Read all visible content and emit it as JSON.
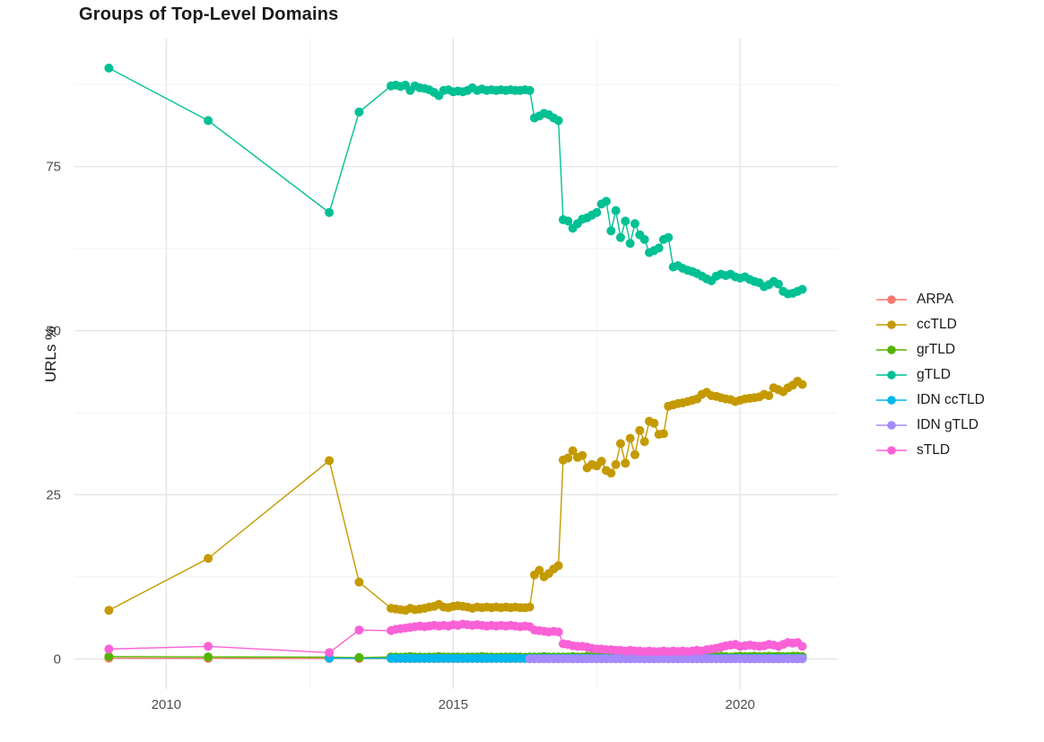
{
  "chart_data": {
    "type": "line",
    "title": "Groups of Top-Level Domains",
    "xlabel": "",
    "ylabel": "URLs %",
    "legend_position": "right",
    "grid": true,
    "background": "#ffffff",
    "grid_major_color": "#e4e4e4",
    "grid_minor_color": "#efefef",
    "tick_label_color": "#4d4d4d",
    "xlim": [
      2008.4,
      2021.7
    ],
    "ylim": [
      -4.6,
      94.5
    ],
    "x_ticks": {
      "major": [
        {
          "v": 2010,
          "label": "2010"
        },
        {
          "v": 2015,
          "label": "2015"
        },
        {
          "v": 2020,
          "label": "2020"
        }
      ],
      "minor": [
        2012.5,
        2017.5
      ]
    },
    "y_ticks": {
      "major": [
        {
          "v": 0,
          "label": "0"
        },
        {
          "v": 25,
          "label": "25"
        },
        {
          "v": 50,
          "label": "50"
        },
        {
          "v": 75,
          "label": "75"
        }
      ],
      "minor": [
        12.5,
        37.5,
        62.5,
        87.5
      ]
    },
    "series": [
      {
        "name": "ARPA",
        "color": "#F8766D",
        "sparse": [
          [
            2009.0,
            0.1
          ],
          [
            2010.73,
            0.07
          ],
          [
            2012.84,
            0.06
          ],
          [
            2013.36,
            0.05
          ]
        ],
        "run": {
          "start": 2013.9167,
          "step": 0.083333,
          "values": [
            0.05,
            0.05,
            0.05,
            0.05,
            0.05,
            0.05,
            0.05,
            0.05,
            0.05,
            0.05,
            0.05,
            0.05,
            0.05,
            0.05,
            0.05,
            0.05,
            0.05,
            0.05,
            0.05,
            0.05,
            0.05,
            0.05,
            0.05,
            0.05,
            0.05,
            0.05,
            0.05,
            0.05,
            0.05,
            0.05,
            0.05,
            0.05,
            0.05,
            0.05,
            0.05,
            0.05,
            0.05,
            0.05,
            0.05,
            0.05,
            0.05,
            0.05,
            0.05,
            0.05,
            0.05,
            0.05,
            0.05,
            0.05,
            0.05,
            0.05,
            0.05,
            0.05,
            0.05,
            0.05,
            0.05,
            0.05,
            0.05,
            0.05,
            0.05,
            0.05,
            0.05,
            0.05,
            0.05,
            0.05,
            0.05,
            0.05,
            0.05,
            0.05,
            0.05,
            0.05,
            0.05,
            0.05,
            0.05,
            0.05,
            0.05,
            0.05,
            0.05,
            0.05,
            0.05,
            0.05,
            0.05,
            0.05,
            0.05,
            0.05,
            0.05,
            0.05,
            0.05
          ]
        }
      },
      {
        "name": "ccTLD",
        "color": "#C49A00",
        "sparse": [
          [
            2009.0,
            7.4
          ],
          [
            2010.73,
            15.3
          ],
          [
            2012.84,
            30.2
          ],
          [
            2013.36,
            11.7
          ]
        ],
        "run": {
          "start": 2013.9167,
          "step": 0.083333,
          "values": [
            7.7,
            7.6,
            7.5,
            7.4,
            7.7,
            7.5,
            7.6,
            7.7,
            7.9,
            8.0,
            8.3,
            7.9,
            7.8,
            8.0,
            8.1,
            8.0,
            7.9,
            7.7,
            7.9,
            7.8,
            7.9,
            7.8,
            7.9,
            7.8,
            7.9,
            7.8,
            7.9,
            7.8,
            7.8,
            7.9,
            12.8,
            13.5,
            12.5,
            13.0,
            13.7,
            14.2,
            30.3,
            30.6,
            31.7,
            30.7,
            31.0,
            29.1,
            29.6,
            29.4,
            30.1,
            28.7,
            28.3,
            29.6,
            32.8,
            29.8,
            33.6,
            31.1,
            34.8,
            33.1,
            36.2,
            35.9,
            34.2,
            34.3,
            38.5,
            38.7,
            38.9,
            39.0,
            39.2,
            39.4,
            39.6,
            40.3,
            40.6,
            40.1,
            40.0,
            39.8,
            39.6,
            39.5,
            39.2,
            39.4,
            39.6,
            39.7,
            39.8,
            39.9,
            40.3,
            40.1,
            41.3,
            41.0,
            40.7,
            41.3,
            41.7,
            42.3,
            41.8
          ]
        }
      },
      {
        "name": "grTLD",
        "color": "#53B400",
        "sparse": [
          [
            2009.0,
            0.35
          ],
          [
            2010.73,
            0.3
          ],
          [
            2012.84,
            0.25
          ],
          [
            2013.36,
            0.2
          ]
        ],
        "run": {
          "start": 2013.9167,
          "step": 0.083333,
          "values": [
            0.3,
            0.3,
            0.25,
            0.3,
            0.35,
            0.3,
            0.3,
            0.25,
            0.3,
            0.3,
            0.35,
            0.3,
            0.3,
            0.3,
            0.3,
            0.25,
            0.3,
            0.3,
            0.3,
            0.35,
            0.3,
            0.3,
            0.25,
            0.3,
            0.3,
            0.3,
            0.3,
            0.3,
            0.25,
            0.3,
            0.3,
            0.3,
            0.35,
            0.3,
            0.3,
            0.3,
            0.3,
            0.3,
            0.35,
            0.3,
            0.3,
            0.4,
            0.35,
            0.3,
            0.35,
            0.3,
            0.3,
            0.35,
            0.3,
            0.35,
            0.3,
            0.3,
            0.35,
            0.3,
            0.35,
            0.3,
            0.3,
            0.35,
            0.3,
            0.35,
            0.3,
            0.35,
            0.4,
            0.35,
            0.3,
            0.35,
            0.4,
            0.35,
            0.35,
            0.4,
            0.35,
            0.3,
            0.35,
            0.4,
            0.35,
            0.35,
            0.4,
            0.35,
            0.35,
            0.4,
            0.35,
            0.4,
            0.35,
            0.35,
            0.4,
            0.4,
            0.35
          ]
        }
      },
      {
        "name": "gTLD",
        "color": "#00C094",
        "sparse": [
          [
            2009.0,
            90.0
          ],
          [
            2010.73,
            82.0
          ],
          [
            2012.84,
            68.0
          ],
          [
            2013.36,
            83.3
          ]
        ],
        "run": {
          "start": 2013.9167,
          "step": 0.083333,
          "values": [
            87.3,
            87.4,
            87.2,
            87.4,
            86.6,
            87.3,
            87.0,
            86.9,
            86.7,
            86.3,
            85.8,
            86.6,
            86.7,
            86.4,
            86.5,
            86.4,
            86.6,
            87.0,
            86.6,
            86.8,
            86.6,
            86.7,
            86.6,
            86.7,
            86.6,
            86.7,
            86.6,
            86.6,
            86.7,
            86.6,
            82.4,
            82.7,
            83.1,
            82.9,
            82.4,
            82.0,
            66.9,
            66.7,
            65.6,
            66.3,
            67.0,
            67.2,
            67.6,
            68.0,
            69.3,
            69.7,
            65.2,
            68.3,
            64.2,
            66.7,
            63.3,
            66.3,
            64.6,
            63.9,
            61.9,
            62.2,
            62.6,
            63.9,
            64.2,
            59.7,
            59.9,
            59.5,
            59.2,
            59.0,
            58.7,
            58.3,
            57.9,
            57.6,
            58.3,
            58.6,
            58.4,
            58.6,
            58.2,
            58.0,
            58.2,
            57.8,
            57.5,
            57.3,
            56.7,
            57.0,
            57.5,
            57.1,
            56.0,
            55.6,
            55.7,
            56.0,
            56.3
          ]
        }
      },
      {
        "name": "IDN ccTLD",
        "color": "#00B6EB",
        "sparse": [
          [
            2012.84,
            0.1
          ]
        ],
        "run": {
          "start": 2013.9167,
          "step": 0.083333,
          "values": [
            0.08,
            0.08,
            0.08,
            0.08,
            0.08,
            0.08,
            0.08,
            0.08,
            0.08,
            0.08,
            0.08,
            0.08,
            0.08,
            0.08,
            0.08,
            0.08,
            0.08,
            0.08,
            0.08,
            0.08,
            0.08,
            0.08,
            0.08,
            0.08,
            0.08,
            0.08,
            0.08,
            0.08,
            0.08,
            0.08,
            0.08,
            0.08,
            0.08,
            0.08,
            0.08,
            0.08,
            0.08,
            0.08,
            0.08,
            0.08,
            0.08,
            0.08,
            0.08,
            0.08,
            0.08,
            0.08,
            0.08,
            0.08,
            0.08,
            0.08,
            0.08,
            0.08,
            0.08,
            0.08,
            0.08,
            0.08,
            0.08,
            0.08,
            0.08,
            0.08,
            0.08,
            0.08,
            0.08,
            0.08,
            0.08,
            0.08,
            0.08,
            0.08,
            0.08,
            0.08,
            0.08,
            0.08,
            0.08,
            0.08,
            0.08,
            0.08,
            0.08,
            0.08,
            0.08,
            0.08,
            0.08,
            0.08,
            0.08,
            0.08,
            0.08,
            0.08,
            0.08
          ]
        }
      },
      {
        "name": "IDN gTLD",
        "color": "#A58AFF",
        "sparse": [],
        "run": {
          "start": 2016.3333,
          "step": 0.083333,
          "values": [
            0.02,
            0.02,
            0.02,
            0.02,
            0.02,
            0.02,
            0.02,
            0.02,
            0.02,
            0.02,
            0.02,
            0.02,
            0.02,
            0.02,
            0.02,
            0.02,
            0.02,
            0.02,
            0.02,
            0.02,
            0.02,
            0.02,
            0.02,
            0.02,
            0.02,
            0.02,
            0.02,
            0.02,
            0.02,
            0.02,
            0.02,
            0.02,
            0.02,
            0.02,
            0.02,
            0.02,
            0.02,
            0.02,
            0.02,
            0.02,
            0.02,
            0.02,
            0.02,
            0.02,
            0.02,
            0.02,
            0.02,
            0.02,
            0.02,
            0.02,
            0.02,
            0.02,
            0.02,
            0.02,
            0.02,
            0.02,
            0.02,
            0.02
          ]
        }
      },
      {
        "name": "sTLD",
        "color": "#FB61D7",
        "sparse": [
          [
            2009.0,
            1.5
          ],
          [
            2010.73,
            1.9
          ],
          [
            2012.84,
            0.95
          ],
          [
            2013.36,
            4.4
          ]
        ],
        "run": {
          "start": 2013.9167,
          "step": 0.083333,
          "values": [
            4.3,
            4.5,
            4.6,
            4.7,
            4.8,
            4.9,
            5.0,
            4.9,
            5.0,
            5.1,
            5.0,
            5.1,
            5.0,
            5.2,
            5.1,
            5.3,
            5.2,
            5.1,
            5.2,
            5.1,
            5.0,
            5.1,
            5.0,
            5.1,
            5.0,
            5.1,
            5.0,
            4.9,
            5.0,
            4.9,
            4.4,
            4.3,
            4.2,
            4.1,
            4.2,
            4.1,
            2.3,
            2.2,
            2.0,
            1.9,
            1.9,
            1.8,
            1.6,
            1.5,
            1.5,
            1.4,
            1.4,
            1.3,
            1.3,
            1.2,
            1.3,
            1.2,
            1.2,
            1.1,
            1.2,
            1.1,
            1.1,
            1.2,
            1.1,
            1.2,
            1.1,
            1.2,
            1.1,
            1.2,
            1.3,
            1.2,
            1.4,
            1.5,
            1.6,
            1.8,
            2.0,
            2.1,
            2.2,
            1.9,
            2.0,
            2.1,
            2.0,
            1.9,
            2.0,
            2.2,
            2.1,
            1.9,
            2.2,
            2.5,
            2.4,
            2.5,
            1.9
          ]
        }
      }
    ]
  }
}
